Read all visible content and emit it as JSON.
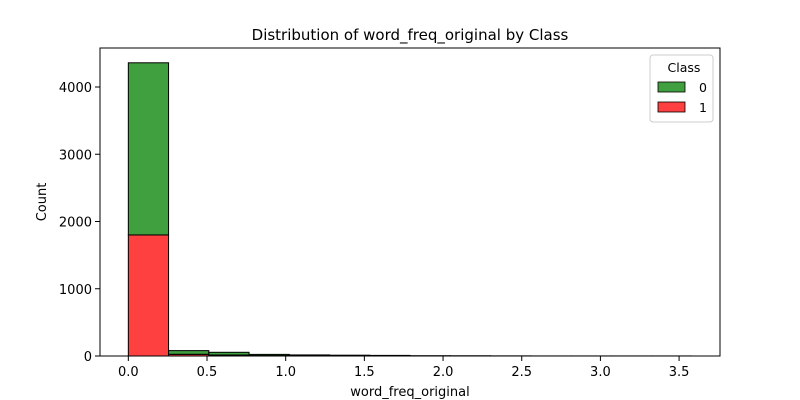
{
  "chart_data": {
    "type": "bar",
    "subtype": "stacked-histogram",
    "title": "Distribution of word_freq_original by Class",
    "xlabel": "word_freq_original",
    "ylabel": "Count",
    "xlim": [
      -0.18,
      3.76
    ],
    "ylim": [
      0,
      4580
    ],
    "xticks": [
      0.0,
      0.5,
      1.0,
      1.5,
      2.0,
      2.5,
      3.0,
      3.5
    ],
    "xtick_labels": [
      "0.0",
      "0.5",
      "1.0",
      "1.5",
      "2.0",
      "2.5",
      "3.0",
      "3.5"
    ],
    "yticks": [
      0,
      1000,
      2000,
      3000,
      4000
    ],
    "ytick_labels": [
      "0",
      "1000",
      "2000",
      "3000",
      "4000"
    ],
    "bin_edges": [
      0.0,
      0.2557,
      0.5114,
      0.7671,
      1.0229,
      1.2786,
      1.5343,
      1.79,
      2.0457,
      2.3014,
      2.5571,
      2.8129,
      3.0686,
      3.3243,
      3.58
    ],
    "series": [
      {
        "name": "1",
        "color": "#ff0000",
        "values": [
          1800,
          25,
          15,
          6,
          4,
          3,
          2,
          1,
          1,
          0,
          0,
          0,
          0,
          0
        ]
      },
      {
        "name": "0",
        "color": "#008000",
        "values": [
          2560,
          55,
          40,
          18,
          12,
          9,
          7,
          3,
          2,
          2,
          1,
          1,
          1,
          1
        ]
      }
    ],
    "grid": false,
    "legend": {
      "title": "Class",
      "placement": "top-right",
      "entries": [
        {
          "label": "0",
          "color": "#008000"
        },
        {
          "label": "1",
          "color": "#ff0000"
        }
      ]
    }
  }
}
